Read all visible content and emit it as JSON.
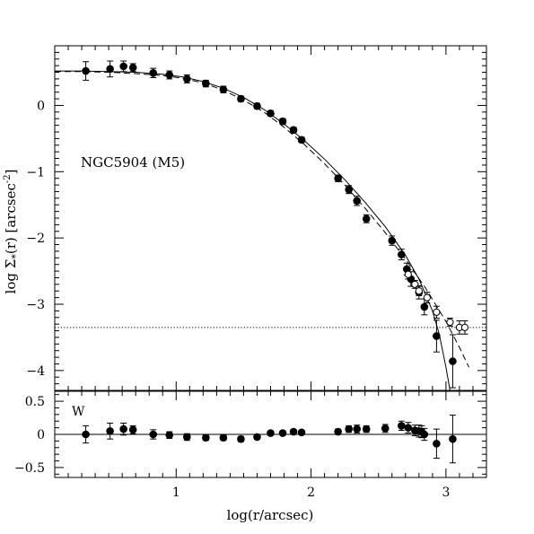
{
  "chart_data": [
    {
      "type": "scatter",
      "panel": "surface-density-profile",
      "annotation": "NGC5904 (M5)",
      "ylabel": "log Σ*(r) [arcsec⁻²]",
      "ylabel_parts": {
        "pre": "log Σ",
        "sub": "*",
        "mid": "(r) [arcsec",
        "sup": "-2",
        "post": "]"
      },
      "xlim": [
        0.1,
        3.3
      ],
      "ylim": [
        -4.3,
        0.9
      ],
      "yticks": [
        0,
        -1,
        -2,
        -3,
        -4
      ],
      "ytick_labels": [
        "0",
        "−1",
        "−2",
        "−3",
        "−4"
      ],
      "background_level": -3.35,
      "series": [
        {
          "marker": "filled-circle-with-errorbar",
          "x": [
            0.33,
            0.51,
            0.61,
            0.68,
            0.83,
            0.95,
            1.08,
            1.22,
            1.35,
            1.48,
            1.6,
            1.7,
            1.79,
            1.87,
            1.93,
            2.2,
            2.28,
            2.34,
            2.41,
            2.6,
            2.67,
            2.71,
            2.74,
            2.8,
            2.84,
            2.93,
            3.05
          ],
          "y": [
            0.52,
            0.55,
            0.59,
            0.57,
            0.49,
            0.46,
            0.4,
            0.33,
            0.24,
            0.1,
            -0.01,
            -0.12,
            -0.24,
            -0.37,
            -0.52,
            -1.1,
            -1.27,
            -1.44,
            -1.71,
            -2.04,
            -2.25,
            -2.47,
            -2.62,
            -2.82,
            -3.04,
            -3.48,
            -3.86
          ],
          "yerr": [
            0.14,
            0.12,
            0.08,
            0.06,
            0.07,
            0.06,
            0.06,
            0.05,
            0.05,
            0.04,
            0.04,
            0.04,
            0.04,
            0.04,
            0.04,
            0.05,
            0.06,
            0.07,
            0.06,
            0.07,
            0.08,
            0.09,
            0.11,
            0.1,
            0.12,
            0.24,
            0.4
          ]
        },
        {
          "marker": "open-circle-with-errorbar",
          "x": [
            2.72,
            2.77,
            2.8,
            2.86,
            2.93,
            3.03,
            3.1,
            3.14
          ],
          "y": [
            -2.55,
            -2.7,
            -2.8,
            -2.9,
            -3.12,
            -3.27,
            -3.35,
            -3.35
          ],
          "yerr": [
            0.07,
            0.06,
            0.07,
            0.08,
            0.09,
            0.06,
            0.1,
            0.1
          ]
        }
      ],
      "model_curves": [
        {
          "style": "solid",
          "x": [
            0.1,
            0.3,
            0.5,
            0.7,
            0.9,
            1.05,
            1.2,
            1.35,
            1.5,
            1.65,
            1.8,
            1.95,
            2.1,
            2.25,
            2.4,
            2.55,
            2.7,
            2.8,
            2.9,
            2.95,
            3.0,
            3.03
          ],
          "y": [
            0.52,
            0.52,
            0.51,
            0.5,
            0.47,
            0.43,
            0.36,
            0.26,
            0.12,
            -0.06,
            -0.28,
            -0.53,
            -0.81,
            -1.12,
            -1.46,
            -1.83,
            -2.26,
            -2.62,
            -3.1,
            -3.45,
            -3.95,
            -4.3
          ]
        },
        {
          "style": "dashed",
          "x": [
            0.1,
            0.3,
            0.5,
            0.7,
            0.9,
            1.05,
            1.2,
            1.35,
            1.5,
            1.65,
            1.8,
            1.95,
            2.1,
            2.25,
            2.4,
            2.55,
            2.7,
            2.85,
            3.0,
            3.1,
            3.17
          ],
          "y": [
            0.51,
            0.51,
            0.5,
            0.48,
            0.45,
            0.41,
            0.34,
            0.23,
            0.08,
            -0.1,
            -0.33,
            -0.59,
            -0.88,
            -1.2,
            -1.55,
            -1.92,
            -2.32,
            -2.76,
            -3.26,
            -3.65,
            -3.95
          ]
        }
      ]
    },
    {
      "type": "scatter",
      "panel": "residuals",
      "annotation": "W",
      "xlabel": "log(r/arcsec)",
      "xlim": [
        0.1,
        3.3
      ],
      "ylim": [
        -0.65,
        0.65
      ],
      "xticks": [
        1,
        2,
        3
      ],
      "xtick_labels": [
        "1",
        "2",
        "3"
      ],
      "yticks": [
        0.5,
        0,
        -0.5
      ],
      "ytick_labels": [
        "0.5",
        "0",
        "−0.5"
      ],
      "series": [
        {
          "marker": "filled-circle-with-errorbar",
          "x": [
            0.33,
            0.51,
            0.61,
            0.68,
            0.83,
            0.95,
            1.08,
            1.22,
            1.35,
            1.48,
            1.6,
            1.7,
            1.79,
            1.87,
            1.93,
            2.2,
            2.28,
            2.34,
            2.41,
            2.55,
            2.67,
            2.72,
            2.77,
            2.8,
            2.82,
            2.84,
            2.93,
            3.05
          ],
          "y": [
            0.0,
            0.05,
            0.08,
            0.07,
            0.0,
            -0.01,
            -0.04,
            -0.05,
            -0.05,
            -0.07,
            -0.04,
            0.02,
            0.02,
            0.04,
            0.03,
            0.04,
            0.08,
            0.08,
            0.08,
            0.09,
            0.13,
            0.1,
            0.06,
            0.05,
            0.04,
            0.0,
            -0.14,
            -0.07
          ],
          "yerr": [
            0.13,
            0.12,
            0.09,
            0.06,
            0.07,
            0.05,
            0.05,
            0.04,
            0.04,
            0.04,
            0.03,
            0.03,
            0.03,
            0.03,
            0.03,
            0.04,
            0.05,
            0.06,
            0.05,
            0.06,
            0.07,
            0.08,
            0.08,
            0.09,
            0.09,
            0.09,
            0.22,
            0.36
          ]
        }
      ]
    }
  ]
}
